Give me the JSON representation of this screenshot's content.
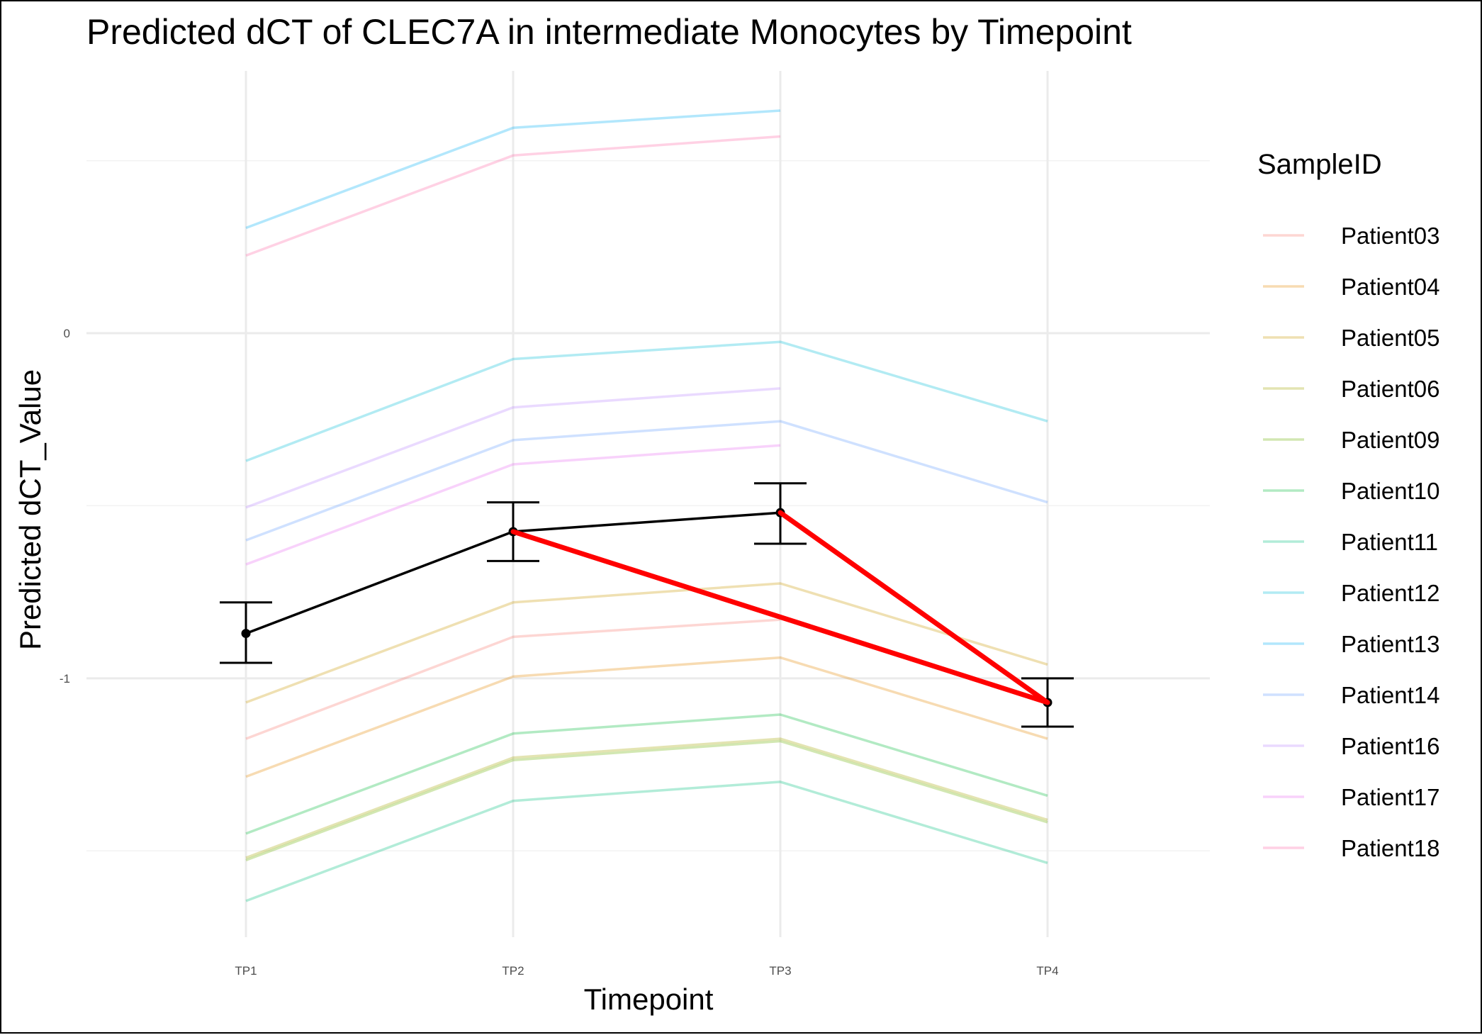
{
  "chart_data": {
    "type": "line",
    "title": "Predicted dCT of  CLEC7A in  intermediate  Monocytes by Timepoint",
    "xlabel": "Timepoint",
    "ylabel": "Predicted dCT_Value",
    "categories": [
      "TP1",
      "TP2",
      "TP3",
      "TP4"
    ],
    "ylim": [
      -1.75,
      0.76
    ],
    "yticks": [
      0,
      -1
    ],
    "ytick_labels": [
      "0",
      "-1"
    ],
    "grid": true,
    "legend": {
      "title": "SampleID",
      "position": "right"
    },
    "series": [
      {
        "name": "Patient03",
        "color": "#F8766D",
        "values": [
          -1.175,
          -0.88,
          -0.83,
          null
        ]
      },
      {
        "name": "Patient04",
        "color": "#E58700",
        "values": [
          -1.285,
          -0.995,
          -0.94,
          -1.175
        ]
      },
      {
        "name": "Patient05",
        "color": "#C99800",
        "values": [
          -1.07,
          -0.78,
          -0.725,
          -0.96
        ]
      },
      {
        "name": "Patient06",
        "color": "#A3A500",
        "values": [
          -1.52,
          -1.23,
          -1.175,
          -1.41
        ]
      },
      {
        "name": "Patient09",
        "color": "#6BB100",
        "values": [
          -1.527,
          -1.237,
          -1.182,
          -1.417
        ]
      },
      {
        "name": "Patient10",
        "color": "#00BA38",
        "values": [
          -1.45,
          -1.16,
          -1.105,
          -1.34
        ]
      },
      {
        "name": "Patient11",
        "color": "#00BF7D",
        "values": [
          -1.645,
          -1.355,
          -1.3,
          -1.535
        ]
      },
      {
        "name": "Patient12",
        "color": "#00BCD8",
        "values": [
          -0.37,
          -0.075,
          -0.025,
          -0.255
        ]
      },
      {
        "name": "Patient13",
        "color": "#00B0F6",
        "values": [
          0.305,
          0.595,
          0.645,
          null
        ]
      },
      {
        "name": "Patient14",
        "color": "#619CFF",
        "values": [
          -0.6,
          -0.31,
          -0.255,
          -0.49
        ]
      },
      {
        "name": "Patient16",
        "color": "#B983FF",
        "values": [
          -0.505,
          -0.215,
          -0.16,
          null
        ]
      },
      {
        "name": "Patient17",
        "color": "#E76BF3",
        "values": [
          -0.67,
          -0.38,
          -0.325,
          null
        ]
      },
      {
        "name": "Patient18",
        "color": "#FF67A4",
        "values": [
          0.225,
          0.515,
          0.57,
          null
        ]
      }
    ],
    "mean_line": {
      "color": "#000000",
      "values": [
        -0.87,
        -0.575,
        -0.52,
        -1.07
      ],
      "error_bars": [
        [
          -0.955,
          -0.78
        ],
        [
          -0.66,
          -0.49
        ],
        [
          -0.61,
          -0.435
        ],
        [
          -1.14,
          -1.0
        ]
      ]
    },
    "highlight_segments": {
      "color": "#FF0000",
      "pairs": [
        [
          "TP2",
          "TP4"
        ],
        [
          "TP3",
          "TP4"
        ]
      ]
    }
  }
}
